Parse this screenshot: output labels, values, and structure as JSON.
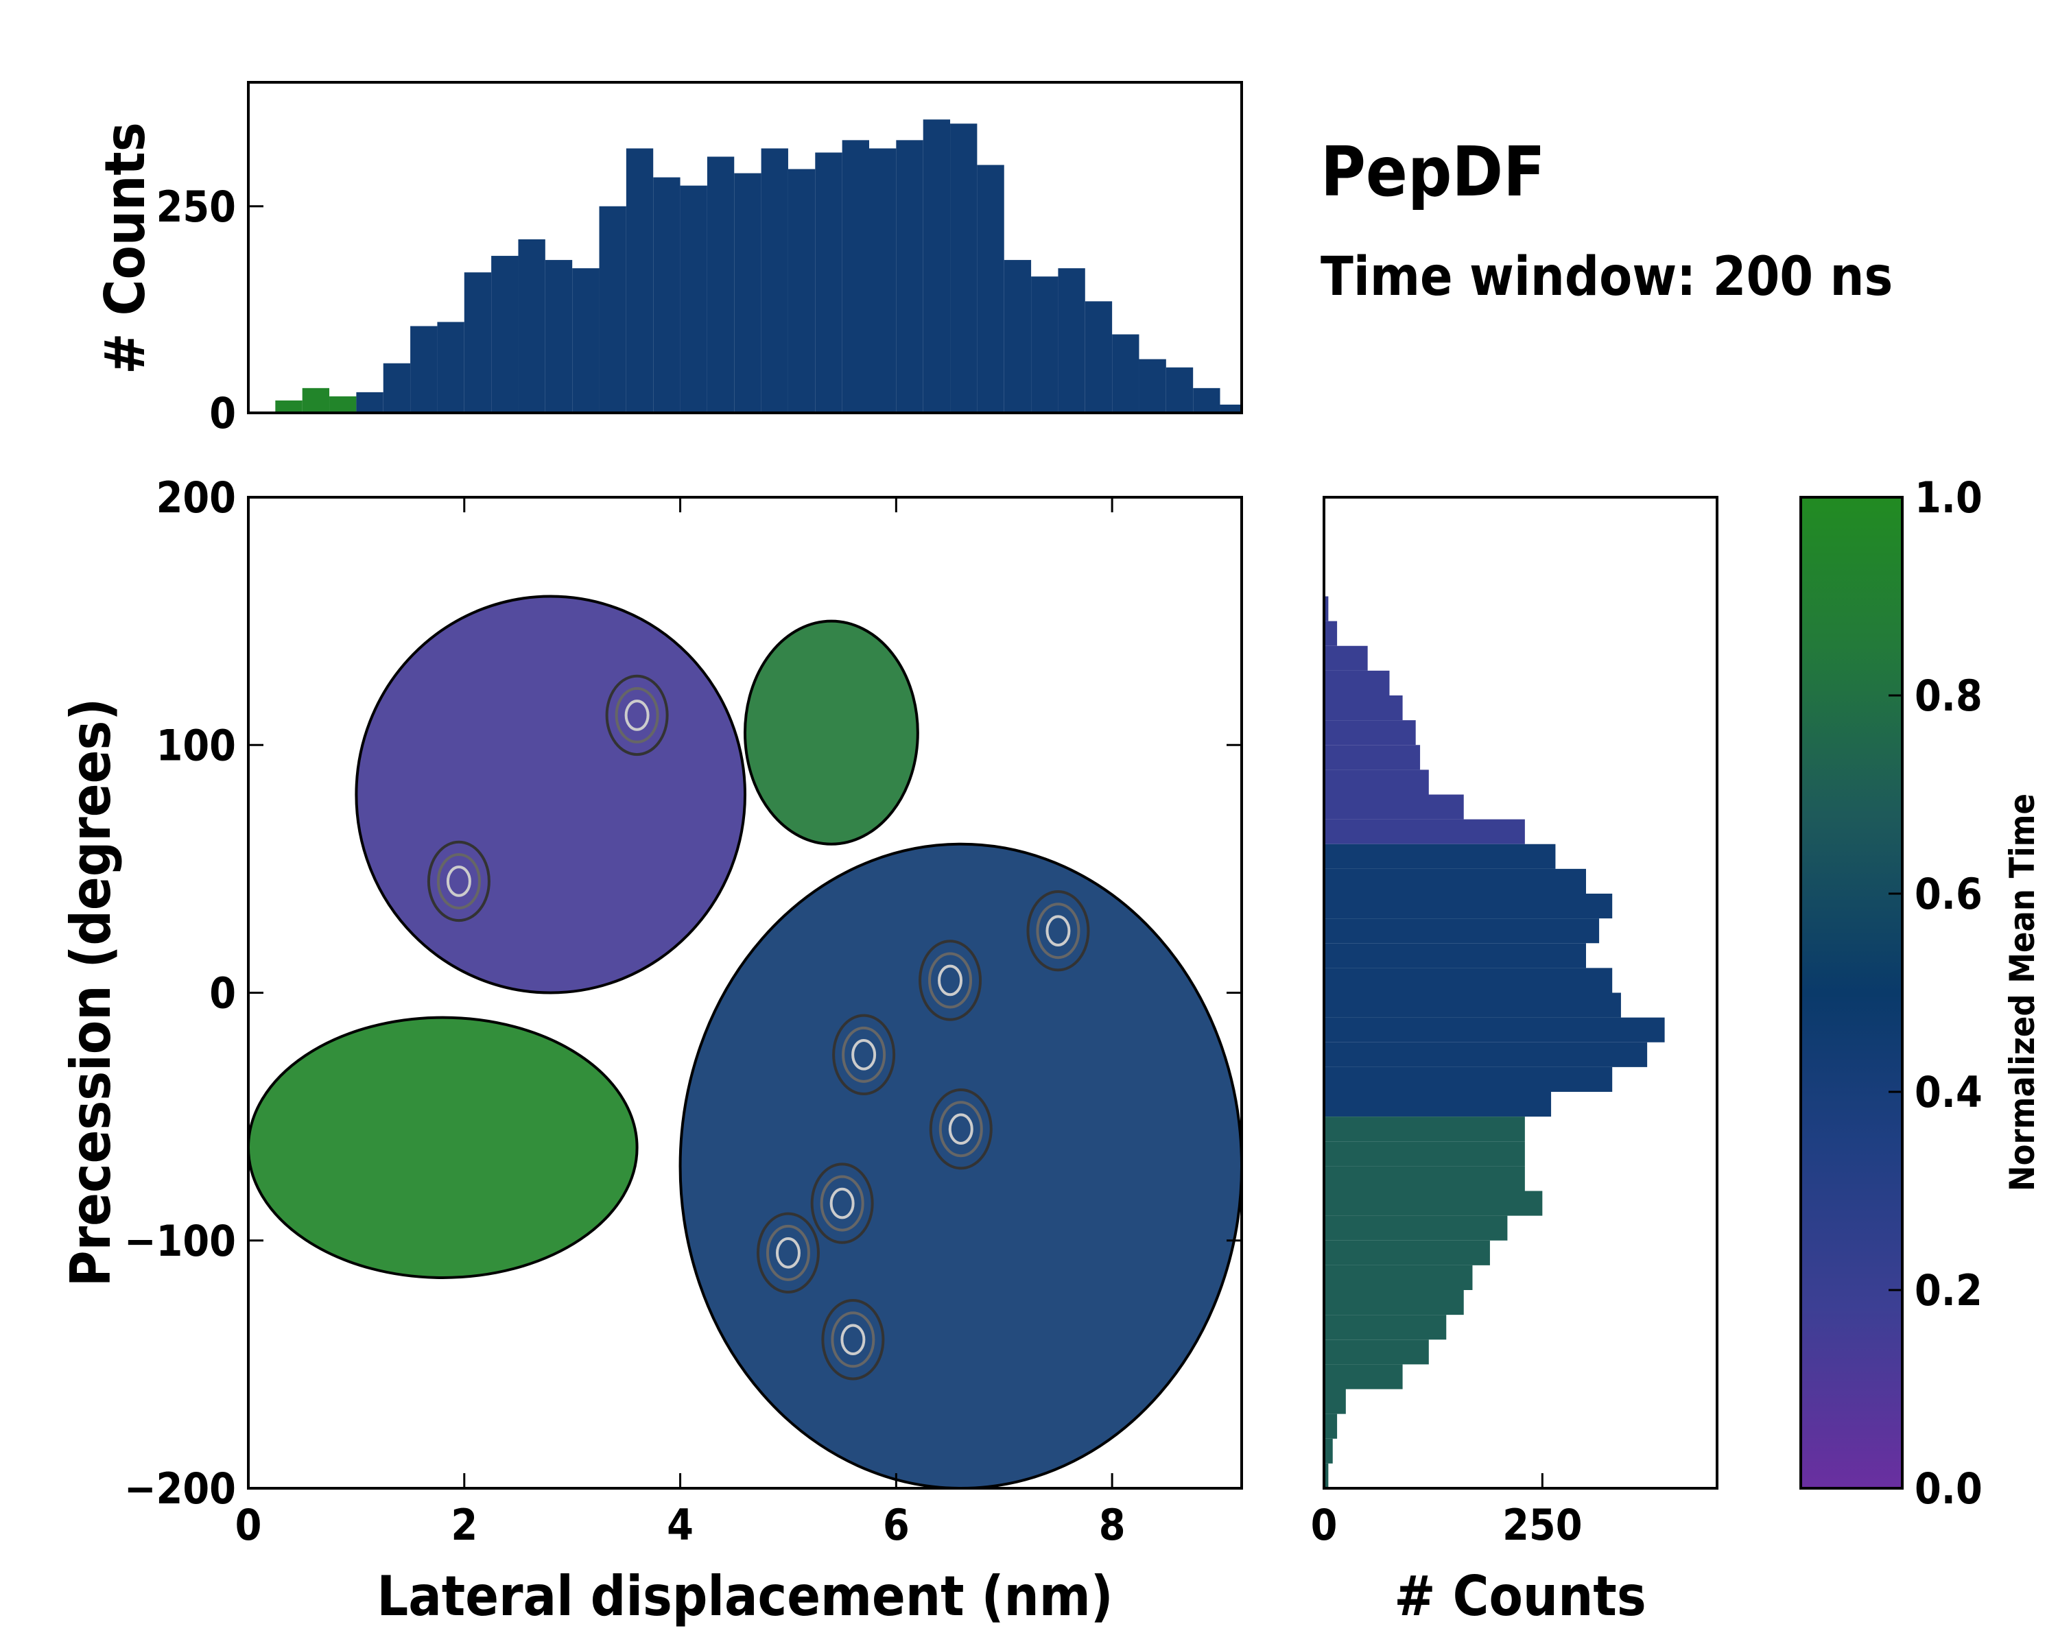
{
  "title": "PepDF",
  "subtitle": "Time window: 200 ns",
  "chart_data": [
    {
      "type": "heatmap",
      "name": "main_joint_density",
      "xlabel": "Lateral displacement (nm)",
      "ylabel": "Precession (degrees)",
      "xlim": [
        0,
        9.2
      ],
      "ylim": [
        -200,
        200
      ],
      "xticks": [
        0,
        2,
        4,
        6,
        8
      ],
      "xtick_labels": [
        "0",
        "2",
        "4",
        "6",
        "8"
      ],
      "yticks": [
        -200,
        -100,
        0,
        100,
        200
      ],
      "ytick_labels": [
        "−200",
        "−100",
        "0",
        "100",
        "200"
      ],
      "color_value": "Normalized Mean Time",
      "regions": [
        {
          "label": "early (purple)",
          "x_range": [
            1.0,
            4.6
          ],
          "y_range": [
            0,
            160
          ],
          "mean_time": 0.15
        },
        {
          "label": "late (green)",
          "x_range": [
            0,
            3.6
          ],
          "y_range": [
            -115,
            -10
          ],
          "mean_time": 0.95
        },
        {
          "label": "upper-right green",
          "x_range": [
            4.6,
            6.2
          ],
          "y_range": [
            60,
            150
          ],
          "mean_time": 0.85
        },
        {
          "label": "middle (blue)",
          "x_range": [
            4.0,
            9.2
          ],
          "y_range": [
            -200,
            60
          ],
          "mean_time": 0.45
        }
      ],
      "density_peaks": [
        {
          "x": 3.6,
          "y": 112
        },
        {
          "x": 1.95,
          "y": 45
        },
        {
          "x": 6.5,
          "y": 5
        },
        {
          "x": 5.7,
          "y": -25
        },
        {
          "x": 5.0,
          "y": -105
        },
        {
          "x": 5.5,
          "y": -85
        },
        {
          "x": 5.6,
          "y": -140
        },
        {
          "x": 7.5,
          "y": 25
        },
        {
          "x": 6.6,
          "y": -55
        }
      ]
    },
    {
      "type": "bar",
      "name": "top_marginal_histogram",
      "xlabel": "",
      "ylabel": "# Counts",
      "xlim": [
        0,
        9.2
      ],
      "ylim": [
        0,
        400
      ],
      "yticks": [
        0,
        250
      ],
      "ytick_labels": [
        "0",
        "250"
      ],
      "x": [
        0.0,
        0.25,
        0.5,
        0.75,
        1.0,
        1.25,
        1.5,
        1.75,
        2.0,
        2.25,
        2.5,
        2.75,
        3.0,
        3.25,
        3.5,
        3.75,
        4.0,
        4.25,
        4.5,
        4.75,
        5.0,
        5.25,
        5.5,
        5.75,
        6.0,
        6.25,
        6.5,
        6.75,
        7.0,
        7.25,
        7.5,
        7.75,
        8.0,
        8.25,
        8.5,
        8.75,
        9.0,
        9.2
      ],
      "values": [
        0,
        15,
        30,
        20,
        25,
        60,
        105,
        110,
        170,
        190,
        210,
        185,
        175,
        250,
        320,
        285,
        275,
        310,
        290,
        320,
        295,
        315,
        330,
        320,
        330,
        355,
        350,
        300,
        185,
        165,
        175,
        135,
        95,
        65,
        55,
        30,
        10,
        0
      ]
    },
    {
      "type": "bar",
      "name": "right_marginal_histogram",
      "orientation": "horizontal",
      "xlabel": "# Counts",
      "ylabel": "",
      "xlim": [
        0,
        450
      ],
      "ylim": [
        -200,
        200
      ],
      "xticks": [
        0,
        250
      ],
      "xtick_labels": [
        "0",
        "250"
      ],
      "y": [
        160,
        150,
        140,
        130,
        120,
        110,
        100,
        90,
        80,
        70,
        60,
        50,
        40,
        30,
        20,
        10,
        0,
        -10,
        -20,
        -30,
        -40,
        -50,
        -60,
        -70,
        -80,
        -90,
        -100,
        -110,
        -120,
        -130,
        -140,
        -150,
        -160,
        -170,
        -180,
        -190
      ],
      "values": [
        5,
        15,
        50,
        75,
        90,
        105,
        110,
        120,
        160,
        230,
        265,
        300,
        330,
        315,
        300,
        330,
        340,
        390,
        370,
        330,
        260,
        230,
        230,
        230,
        250,
        210,
        190,
        170,
        160,
        140,
        120,
        90,
        25,
        15,
        10,
        5
      ]
    },
    {
      "type": "colorbar",
      "name": "colorbar",
      "label": "Normalized Mean Time",
      "range": [
        0.0,
        1.0
      ],
      "ticks": [
        0.0,
        0.2,
        0.4,
        0.6,
        0.8,
        1.0
      ],
      "tick_labels": [
        "0.0",
        "0.2",
        "0.4",
        "0.6",
        "0.8",
        "1.0"
      ],
      "colors": [
        "#6a2fa0",
        "#3d3f94",
        "#1f3f82",
        "#0a3a6a",
        "#1e5a5a",
        "#237a3a",
        "#228b22"
      ]
    }
  ]
}
